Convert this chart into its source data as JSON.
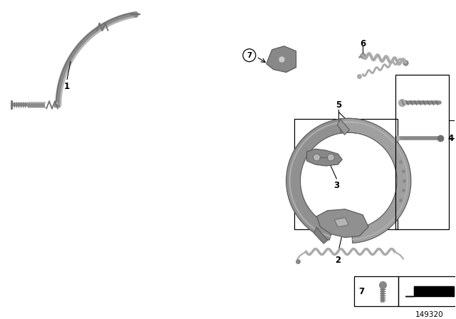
{
  "bg_color": "#ffffff",
  "line_color": "#000000",
  "part_color": "#8a8a8a",
  "part_color_light": "#b5b5b5",
  "part_color_dark": "#707070",
  "diagram_number": "149320",
  "figsize": [
    6.4,
    4.48
  ],
  "dpi": 100
}
